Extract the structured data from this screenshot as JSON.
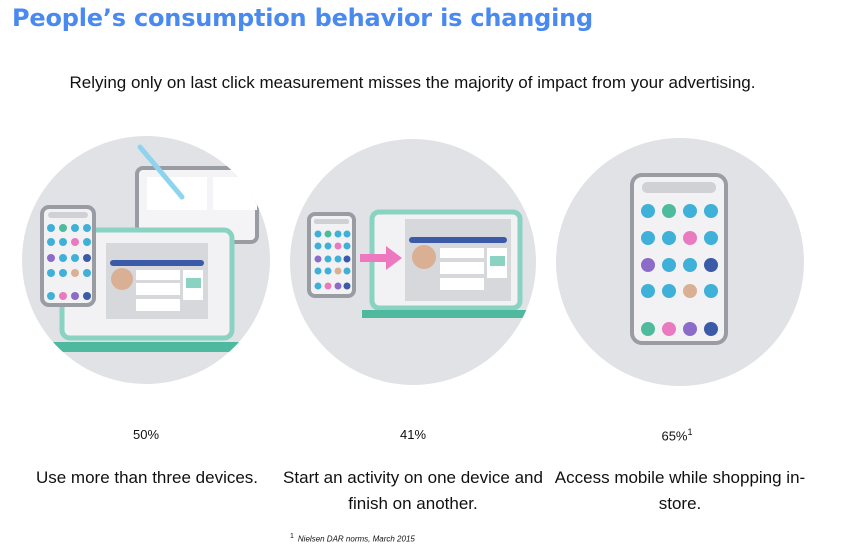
{
  "header": {
    "title": "People’s consumption behavior is changing",
    "subtitle": "Relying only on last click measurement misses the majority of impact from your advertising."
  },
  "stats": [
    {
      "value": "50%",
      "caption": "Use more than three devices.",
      "illustration": "phone-laptop-tablet-icon"
    },
    {
      "value": "41%",
      "caption": "Start an activity on one device and finish on another.",
      "illustration": "phone-to-laptop-icon"
    },
    {
      "value": "65%",
      "footnote_ref": "1",
      "caption": "Access mobile while shopping in-store.",
      "illustration": "mobile-phone-icon"
    }
  ],
  "footnote": {
    "ref": "1",
    "text": "Nielsen DAR norms, March 2015"
  },
  "colors": {
    "title": "#4a8af0",
    "circle": "#e1e2e6",
    "laptop": "#8ad3c2",
    "base": "#4fb99f",
    "arrow": "#ee78c0",
    "app_blue": "#3fb0d8",
    "app_teal": "#4dbb9c",
    "app_pink": "#e97ac0",
    "app_purple": "#8b6cc8",
    "app_navy": "#3b5aa8",
    "app_tan": "#d9b094"
  }
}
